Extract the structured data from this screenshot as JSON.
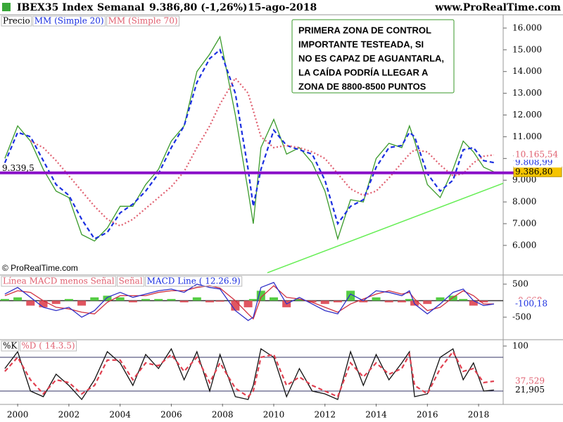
{
  "header": {
    "symbol": "IBEX35 Index",
    "period": "Semanal",
    "quote": "9.386,80 (-1,26%)",
    "date": "15-ago-2018",
    "site": "www.ProRealTime.com"
  },
  "chart_data": [
    {
      "type": "line",
      "watermark": "© ProRealTime.com",
      "annotation": [
        "PRIMERA ZONA DE CONTROL",
        "IMPORTANTE TESTEADA, SI",
        "NO ES CAPAZ DE AGUANTARLA,",
        "LA CAÍDA PODRÍA LLEGAR A",
        "ZONA DE 8800-8500 PUNTOS"
      ],
      "xlim": [
        1999.31,
        2018.96
      ],
      "ylim": [
        4670,
        16580
      ],
      "yticks": [
        {
          "value": 6000,
          "label": "6.000"
        },
        {
          "value": 7000,
          "label": "7.000"
        },
        {
          "value": 8000,
          "label": "8.000"
        },
        {
          "value": 9000,
          "label": "9.000"
        },
        {
          "value": 10000,
          "label": "10.000"
        },
        {
          "value": 11000,
          "label": "11.000"
        },
        {
          "value": 12000,
          "label": "12.000"
        },
        {
          "value": 13000,
          "label": "13.000"
        },
        {
          "value": 14000,
          "label": "14.000"
        },
        {
          "value": 15000,
          "label": "15.000"
        },
        {
          "value": 16000,
          "label": "16.000"
        }
      ],
      "hlines": [
        {
          "value": 9339.5,
          "label": "9.339,5",
          "color": "#8a10c8"
        }
      ],
      "trendline": {
        "x": [
          2009.75,
          2018.96
        ],
        "values": [
          4740,
          8860
        ],
        "color": "#66ee55"
      },
      "x": [
        1999.5,
        2000,
        2000.5,
        2001,
        2001.5,
        2002,
        2002.5,
        2003,
        2003.5,
        2004,
        2004.5,
        2005,
        2005.5,
        2006,
        2006.5,
        2007,
        2007.5,
        2007.9,
        2008.5,
        2009,
        2009.2,
        2009.5,
        2010,
        2010.5,
        2011,
        2011.5,
        2012,
        2012.5,
        2013,
        2013.5,
        2014,
        2014.5,
        2015,
        2015.3,
        2015.5,
        2016,
        2016.5,
        2017,
        2017.4,
        2017.8,
        2018.2,
        2018.6
      ],
      "series": [
        {
          "name": "Precio",
          "color": "#3a9a2a",
          "style": "solid",
          "legend_color": "#000000",
          "tag_bg": "#f5c400",
          "last_label": "9.386,80",
          "values": [
            10000,
            11500,
            10800,
            9500,
            8500,
            8200,
            6500,
            6200,
            6800,
            7800,
            7800,
            8800,
            9500,
            10800,
            11500,
            14000,
            14800,
            15600,
            12000,
            8500,
            7000,
            10500,
            11800,
            10200,
            10500,
            9800,
            8500,
            6300,
            8100,
            8000,
            10000,
            10700,
            10500,
            11500,
            10800,
            8800,
            8200,
            9500,
            10800,
            10300,
            9600,
            9386.8
          ]
        },
        {
          "name": "MM (Simple 20)",
          "color": "#1a2ee0",
          "style": "dashed",
          "legend_color": "#1a2ee0",
          "tag_bg": "#ffffff",
          "last_label": "9.808,99",
          "values": [
            9800,
            11200,
            11000,
            9900,
            8800,
            8300,
            7200,
            6300,
            6600,
            7500,
            7900,
            8500,
            9300,
            10500,
            11500,
            13500,
            14600,
            15000,
            13000,
            9500,
            7800,
            9500,
            11300,
            10600,
            10400,
            10200,
            9000,
            7000,
            7800,
            8100,
            9600,
            10500,
            10600,
            11200,
            11000,
            9300,
            8500,
            9000,
            10400,
            10500,
            9900,
            9808.99
          ]
        },
        {
          "name": "MM (Simple 70)",
          "color": "#e06070",
          "style": "dotted",
          "legend_color": "#e06070",
          "tag_bg": "#ffffff",
          "last_label": "10.165,54",
          "values": [
            null,
            null,
            10800,
            10500,
            9900,
            9200,
            8500,
            7800,
            7200,
            6900,
            7200,
            7700,
            8200,
            8700,
            9400,
            10500,
            11500,
            12500,
            13700,
            13000,
            12200,
            11000,
            10500,
            10600,
            10500,
            10300,
            10000,
            9300,
            8600,
            8300,
            8500,
            9100,
            9800,
            10200,
            10400,
            10300,
            9700,
            9200,
            9300,
            9800,
            10100,
            10165.54
          ]
        }
      ]
    },
    {
      "type": "line",
      "xlim": [
        1999.31,
        2018.96
      ],
      "ylim": [
        -1160,
        755
      ],
      "yticks": [
        -500,
        500
      ],
      "zero_line": true,
      "x": [
        1999.5,
        2000,
        2000.5,
        2001,
        2001.5,
        2002,
        2002.5,
        2003,
        2003.5,
        2004,
        2004.5,
        2005,
        2005.5,
        2006,
        2006.5,
        2007,
        2007.5,
        2007.9,
        2008.5,
        2009,
        2009.2,
        2009.5,
        2010,
        2010.5,
        2011,
        2011.5,
        2012,
        2012.5,
        2013,
        2013.5,
        2014,
        2014.5,
        2015,
        2015.3,
        2015.5,
        2016,
        2016.5,
        2017,
        2017.4,
        2017.8,
        2018.2,
        2018.6
      ],
      "series": [
        {
          "name": "Línea MACD menos Señal",
          "color": "#55cc44",
          "negative_color": "#e05560",
          "style": "bar",
          "legend_color": "#e06070",
          "tag_bg": "#ffffff",
          "last_label": "-0,668",
          "values": [
            50,
            100,
            -150,
            -200,
            -100,
            50,
            -150,
            100,
            150,
            100,
            -50,
            50,
            50,
            50,
            -50,
            100,
            -50,
            -30,
            -300,
            -200,
            50,
            300,
            100,
            -200,
            50,
            -50,
            -100,
            -50,
            300,
            -50,
            100,
            -50,
            -50,
            50,
            -150,
            -100,
            100,
            150,
            50,
            -150,
            -50,
            -0.668
          ]
        },
        {
          "name": "Señal",
          "color": "#d03040",
          "style": "solid",
          "legend_color": "#e06070",
          "tag_bg": "#ffffff",
          "values": [
            150,
            300,
            250,
            0,
            -200,
            -250,
            -350,
            -400,
            -50,
            150,
            150,
            150,
            250,
            300,
            300,
            400,
            450,
            380,
            0,
            -400,
            -550,
            100,
            450,
            100,
            50,
            -50,
            -200,
            -350,
            -100,
            50,
            200,
            300,
            200,
            250,
            50,
            -300,
            -200,
            100,
            300,
            150,
            -100,
            -99.512
          ]
        },
        {
          "name": "MACD Line ( 12.26.9)",
          "color": "#3030c8",
          "style": "solid",
          "legend_color": "#1a2ee0",
          "tag_bg": "#ffffff",
          "last_label": "-100,18",
          "values": [
            200,
            400,
            100,
            -200,
            -300,
            -200,
            -500,
            -300,
            100,
            250,
            100,
            200,
            300,
            350,
            250,
            500,
            400,
            350,
            -300,
            -600,
            -500,
            400,
            550,
            -100,
            100,
            -100,
            -300,
            -400,
            200,
            0,
            300,
            250,
            150,
            300,
            -100,
            -400,
            -100,
            250,
            350,
            0,
            -150,
            -100.18
          ]
        }
      ]
    },
    {
      "type": "line",
      "xlim": [
        1999.31,
        2018.96
      ],
      "ylim": [
        -2.5,
        110
      ],
      "yticks": [
        100
      ],
      "levels": [
        80,
        20
      ],
      "xticks": [
        2000,
        2002,
        2004,
        2006,
        2008,
        2010,
        2012,
        2014,
        2016,
        2018
      ],
      "x": [
        1999.5,
        2000,
        2000.5,
        2001,
        2001.5,
        2002,
        2002.5,
        2003,
        2003.5,
        2004,
        2004.5,
        2005,
        2005.5,
        2006,
        2006.5,
        2007,
        2007.5,
        2007.9,
        2008.5,
        2009,
        2009.2,
        2009.5,
        2010,
        2010.5,
        2011,
        2011.5,
        2012,
        2012.5,
        2013,
        2013.5,
        2014,
        2014.5,
        2015,
        2015.3,
        2015.5,
        2016,
        2016.5,
        2017,
        2017.4,
        2017.8,
        2018.2,
        2018.6
      ],
      "series": [
        {
          "name": "%K",
          "color": "#111111",
          "style": "solid",
          "legend_color": "#000000",
          "tag_bg": "#ffffff",
          "last_label": "21,905",
          "values": [
            60,
            90,
            20,
            10,
            50,
            30,
            5,
            40,
            90,
            70,
            30,
            85,
            60,
            95,
            40,
            90,
            20,
            85,
            10,
            5,
            30,
            95,
            80,
            10,
            60,
            20,
            15,
            5,
            90,
            30,
            85,
            40,
            70,
            90,
            10,
            15,
            80,
            95,
            40,
            70,
            20,
            21.905
          ]
        },
        {
          "name": "%D ( 14.3.5)",
          "color": "#e04050",
          "style": "dashed",
          "legend_color": "#e06070",
          "tag_bg": "#ffffff",
          "last_label": "37,529",
          "values": [
            55,
            80,
            40,
            15,
            40,
            35,
            15,
            30,
            75,
            75,
            40,
            70,
            65,
            85,
            55,
            80,
            35,
            70,
            25,
            10,
            20,
            80,
            85,
            30,
            45,
            30,
            20,
            10,
            70,
            45,
            70,
            50,
            60,
            85,
            30,
            15,
            60,
            90,
            55,
            60,
            35,
            37.529
          ]
        }
      ]
    }
  ]
}
